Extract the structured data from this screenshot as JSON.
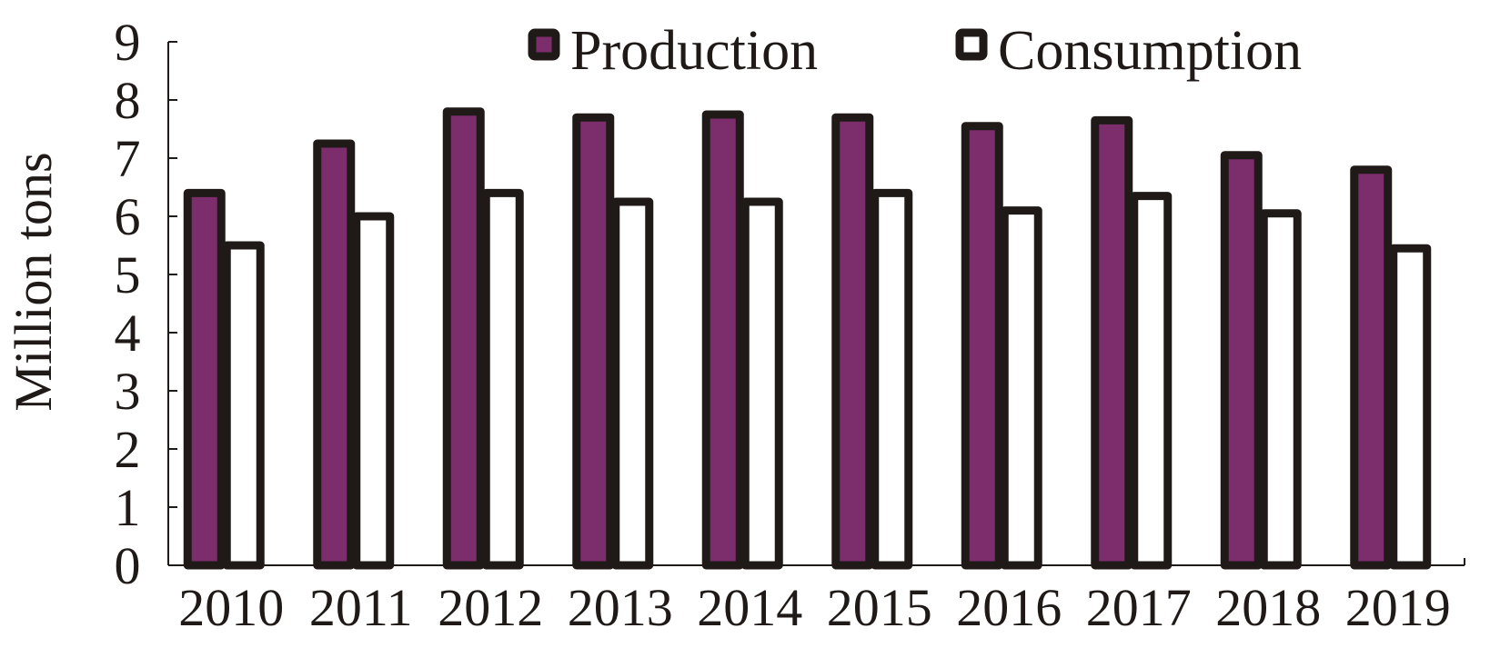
{
  "chart_data": {
    "type": "bar",
    "title": "",
    "xlabel": "",
    "ylabel": "Million tons",
    "ylim": [
      0,
      9
    ],
    "yticks": [
      0,
      1,
      2,
      3,
      4,
      5,
      6,
      7,
      8,
      9
    ],
    "grid": false,
    "legend_position": "top-right",
    "categories": [
      "2010",
      "2011",
      "2012",
      "2013",
      "2014",
      "2015",
      "2016",
      "2017",
      "2018",
      "2019"
    ],
    "series": [
      {
        "name": "Production",
        "values": [
          6.4,
          7.25,
          7.8,
          7.7,
          7.75,
          7.7,
          7.55,
          7.65,
          7.05,
          6.8
        ],
        "color": "#7b2d6c"
      },
      {
        "name": "Consumption",
        "values": [
          5.5,
          6.0,
          6.4,
          6.25,
          6.25,
          6.4,
          6.1,
          6.35,
          6.05,
          5.45
        ],
        "color": "#ffffff"
      }
    ],
    "bar_outline_color": "#1f1a17",
    "axis_color": "#1f1a17"
  }
}
